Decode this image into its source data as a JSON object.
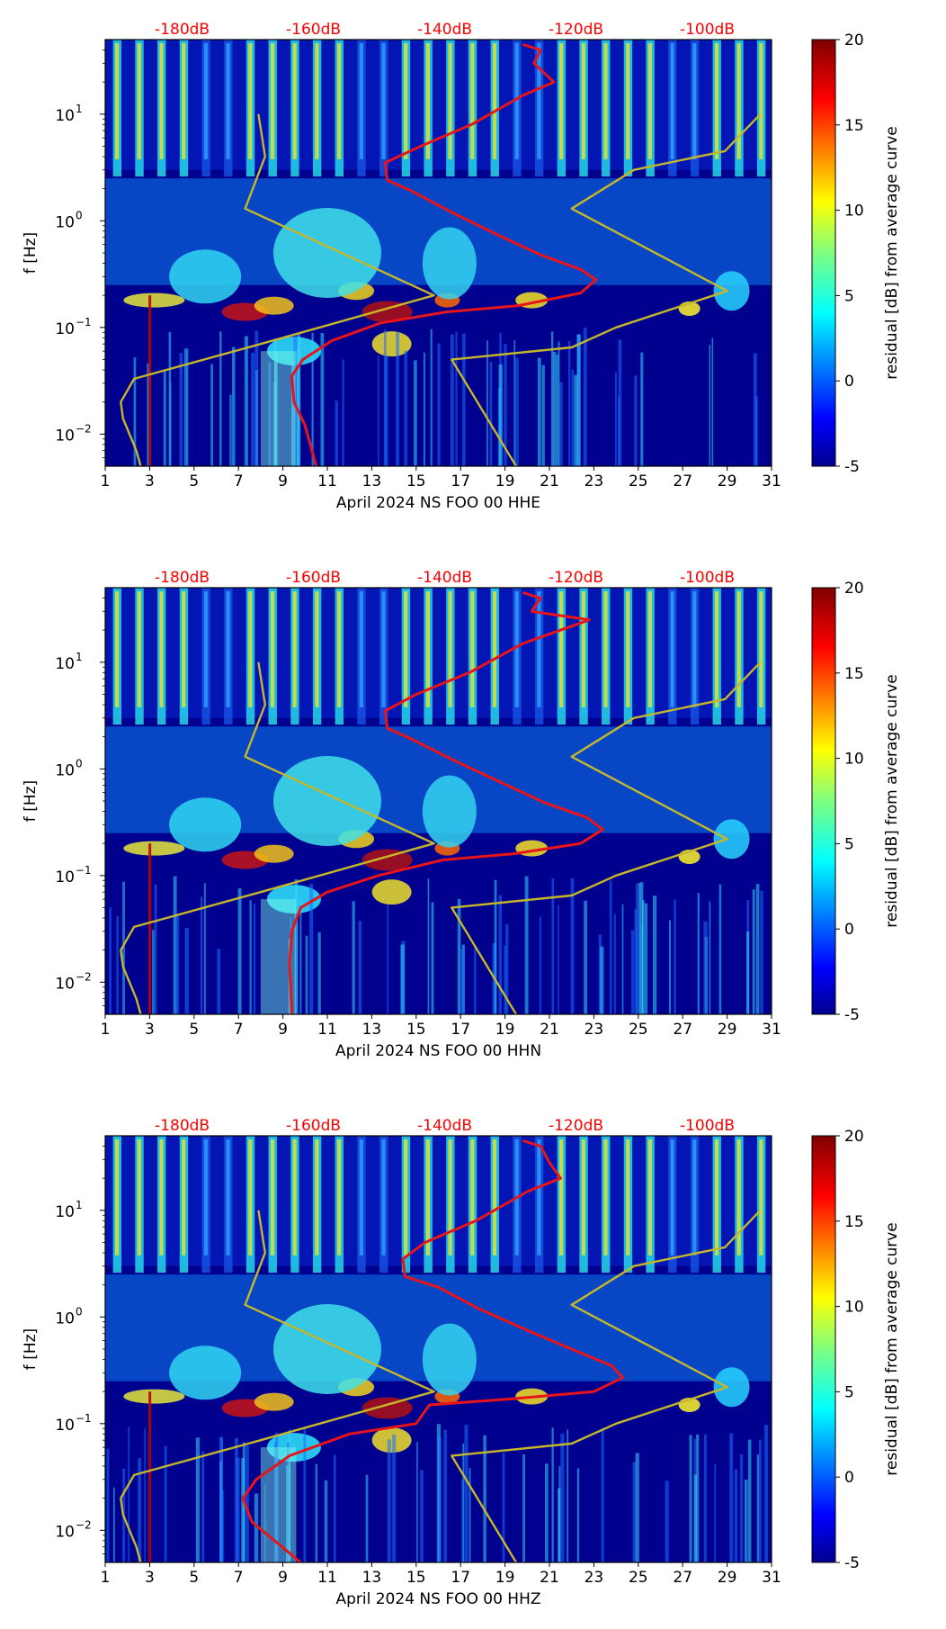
{
  "chart_data": [
    {
      "type": "heatmap",
      "title": "",
      "xlabel": "April 2024 NS FOO 00 HHE",
      "ylabel": "f [Hz]",
      "x_ticks": [
        1,
        3,
        5,
        7,
        9,
        11,
        13,
        15,
        17,
        19,
        21,
        23,
        25,
        27,
        29,
        31
      ],
      "xlim": [
        1,
        31
      ],
      "y_scale": "log",
      "ylim": [
        0.005,
        50
      ],
      "y_ticks": [
        {
          "value": 0.01,
          "base": "10",
          "exp": "−2"
        },
        {
          "value": 0.1,
          "base": "10",
          "exp": "−1"
        },
        {
          "value": 1,
          "base": "10",
          "exp": "0"
        },
        {
          "value": 10,
          "base": "10",
          "exp": "1"
        }
      ],
      "top_axis": {
        "labels": [
          "-180dB",
          "-160dB",
          "-140dB",
          "-120dB",
          "-100dB"
        ],
        "color": "#ff0000"
      },
      "colorbar": {
        "label": "residual [dB] from average curve",
        "ticks": [
          -5,
          0,
          5,
          10,
          15,
          20
        ],
        "min": -5,
        "max": 20,
        "colormap": "jet"
      },
      "series": [
        {
          "name": "average PSD curve",
          "color": "#e8141a",
          "points": [
            [
              19.8,
              45
            ],
            [
              20.6,
              40
            ],
            [
              20.3,
              30
            ],
            [
              21.2,
              20
            ],
            [
              19.8,
              15
            ],
            [
              17.5,
              8
            ],
            [
              15.2,
              5
            ],
            [
              13.6,
              3.5
            ],
            [
              13.7,
              2.4
            ],
            [
              14.8,
              1.9
            ],
            [
              16.6,
              1.2
            ],
            [
              18.6,
              0.75
            ],
            [
              20.6,
              0.48
            ],
            [
              22.4,
              0.35
            ],
            [
              23.1,
              0.28
            ],
            [
              22.4,
              0.21
            ],
            [
              19.6,
              0.16
            ],
            [
              16.4,
              0.14
            ],
            [
              13.4,
              0.11
            ],
            [
              11.2,
              0.075
            ],
            [
              9.9,
              0.05
            ],
            [
              9.4,
              0.035
            ],
            [
              9.5,
              0.02
            ],
            [
              10.0,
              0.012
            ],
            [
              10.5,
              0.005
            ]
          ]
        },
        {
          "name": "noise model",
          "color": "#c6b62a",
          "points": [
            [
              7.9,
              10
            ],
            [
              8.2,
              4
            ],
            [
              7.3,
              1.3
            ],
            [
              15.8,
              0.2
            ],
            [
              8.0,
              0.07
            ],
            [
              2.3,
              0.033
            ],
            [
              1.7,
              0.02
            ],
            [
              1.8,
              0.014
            ],
            [
              2.4,
              0.007
            ],
            [
              2.6,
              0.005
            ]
          ]
        },
        {
          "name": "noise model",
          "color": "#c6b62a",
          "points": [
            [
              30.5,
              10
            ],
            [
              28.9,
              4.5
            ],
            [
              24.8,
              3
            ],
            [
              22.0,
              1.3
            ],
            [
              29.0,
              0.22
            ],
            [
              24.0,
              0.1
            ],
            [
              22.0,
              0.065
            ],
            [
              16.6,
              0.05
            ],
            [
              19.5,
              0.005
            ]
          ]
        }
      ]
    },
    {
      "type": "heatmap",
      "title": "",
      "xlabel": "April 2024 NS FOO 00 HHN",
      "ylabel": "f [Hz]",
      "x_ticks": [
        1,
        3,
        5,
        7,
        9,
        11,
        13,
        15,
        17,
        19,
        21,
        23,
        25,
        27,
        29,
        31
      ],
      "xlim": [
        1,
        31
      ],
      "y_scale": "log",
      "ylim": [
        0.005,
        50
      ],
      "y_ticks": [
        {
          "value": 0.01,
          "base": "10",
          "exp": "−2"
        },
        {
          "value": 0.1,
          "base": "10",
          "exp": "−1"
        },
        {
          "value": 1,
          "base": "10",
          "exp": "0"
        },
        {
          "value": 10,
          "base": "10",
          "exp": "1"
        }
      ],
      "top_axis": {
        "labels": [
          "-180dB",
          "-160dB",
          "-140dB",
          "-120dB",
          "-100dB"
        ],
        "color": "#ff0000"
      },
      "colorbar": {
        "label": "residual [dB] from average curve",
        "ticks": [
          -5,
          0,
          5,
          10,
          15,
          20
        ],
        "min": -5,
        "max": 20,
        "colormap": "jet"
      },
      "series": [
        {
          "name": "average PSD curve",
          "color": "#e8141a",
          "points": [
            [
              19.8,
              45
            ],
            [
              20.6,
              40
            ],
            [
              20.2,
              30
            ],
            [
              22.8,
              25
            ],
            [
              19.8,
              15
            ],
            [
              17.4,
              8
            ],
            [
              15.0,
              5
            ],
            [
              13.6,
              3.5
            ],
            [
              13.7,
              2.4
            ],
            [
              14.8,
              1.9
            ],
            [
              16.7,
              1.2
            ],
            [
              18.8,
              0.75
            ],
            [
              20.8,
              0.48
            ],
            [
              22.7,
              0.35
            ],
            [
              23.4,
              0.27
            ],
            [
              22.4,
              0.2
            ],
            [
              19.4,
              0.16
            ],
            [
              16.2,
              0.14
            ],
            [
              13.3,
              0.1
            ],
            [
              11.0,
              0.07
            ],
            [
              9.8,
              0.05
            ],
            [
              9.4,
              0.03
            ],
            [
              9.3,
              0.015
            ],
            [
              9.4,
              0.005
            ]
          ]
        },
        {
          "name": "noise model",
          "color": "#c6b62a",
          "points": [
            [
              7.9,
              10
            ],
            [
              8.2,
              4
            ],
            [
              7.3,
              1.3
            ],
            [
              15.8,
              0.2
            ],
            [
              8.0,
              0.07
            ],
            [
              2.3,
              0.033
            ],
            [
              1.7,
              0.02
            ],
            [
              1.8,
              0.014
            ],
            [
              2.4,
              0.007
            ],
            [
              2.6,
              0.005
            ]
          ]
        },
        {
          "name": "noise model",
          "color": "#c6b62a",
          "points": [
            [
              30.5,
              10
            ],
            [
              28.9,
              4.5
            ],
            [
              24.8,
              3
            ],
            [
              22.0,
              1.3
            ],
            [
              29.0,
              0.22
            ],
            [
              24.0,
              0.1
            ],
            [
              22.0,
              0.065
            ],
            [
              16.6,
              0.05
            ],
            [
              19.5,
              0.005
            ]
          ]
        }
      ]
    },
    {
      "type": "heatmap",
      "title": "",
      "xlabel": "April 2024 NS FOO 00 HHZ",
      "ylabel": "f [Hz]",
      "x_ticks": [
        1,
        3,
        5,
        7,
        9,
        11,
        13,
        15,
        17,
        19,
        21,
        23,
        25,
        27,
        29,
        31
      ],
      "xlim": [
        1,
        31
      ],
      "y_scale": "log",
      "ylim": [
        0.005,
        50
      ],
      "y_ticks": [
        {
          "value": 0.01,
          "base": "10",
          "exp": "−2"
        },
        {
          "value": 0.1,
          "base": "10",
          "exp": "−1"
        },
        {
          "value": 1,
          "base": "10",
          "exp": "0"
        },
        {
          "value": 10,
          "base": "10",
          "exp": "1"
        }
      ],
      "top_axis": {
        "labels": [
          "-180dB",
          "-160dB",
          "-140dB",
          "-120dB",
          "-100dB"
        ],
        "color": "#ff0000"
      },
      "colorbar": {
        "label": "residual [dB] from average curve",
        "ticks": [
          -5,
          0,
          5,
          10,
          15,
          20
        ],
        "min": -5,
        "max": 20,
        "colormap": "jet"
      },
      "series": [
        {
          "name": "average PSD curve",
          "color": "#e8141a",
          "points": [
            [
              19.8,
              45
            ],
            [
              20.6,
              40
            ],
            [
              21.0,
              28
            ],
            [
              21.5,
              20
            ],
            [
              20.0,
              15
            ],
            [
              17.7,
              8
            ],
            [
              15.4,
              5
            ],
            [
              14.4,
              3.5
            ],
            [
              14.5,
              2.4
            ],
            [
              16.0,
              1.9
            ],
            [
              17.8,
              1.2
            ],
            [
              20.0,
              0.75
            ],
            [
              22.2,
              0.48
            ],
            [
              23.8,
              0.35
            ],
            [
              24.3,
              0.27
            ],
            [
              23.0,
              0.2
            ],
            [
              19.2,
              0.17
            ],
            [
              15.6,
              0.15
            ],
            [
              15.0,
              0.1
            ],
            [
              12.0,
              0.08
            ],
            [
              9.3,
              0.05
            ],
            [
              7.8,
              0.03
            ],
            [
              7.2,
              0.02
            ],
            [
              7.6,
              0.012
            ],
            [
              9.8,
              0.005
            ]
          ]
        },
        {
          "name": "noise model",
          "color": "#c6b62a",
          "points": [
            [
              7.9,
              10
            ],
            [
              8.2,
              4
            ],
            [
              7.3,
              1.3
            ],
            [
              15.8,
              0.2
            ],
            [
              8.0,
              0.07
            ],
            [
              2.3,
              0.033
            ],
            [
              1.7,
              0.02
            ],
            [
              1.8,
              0.014
            ],
            [
              2.4,
              0.007
            ],
            [
              2.6,
              0.005
            ]
          ]
        },
        {
          "name": "noise model",
          "color": "#c6b62a",
          "points": [
            [
              30.5,
              10
            ],
            [
              28.9,
              4.5
            ],
            [
              24.8,
              3
            ],
            [
              22.0,
              1.3
            ],
            [
              29.0,
              0.22
            ],
            [
              24.0,
              0.1
            ],
            [
              22.0,
              0.065
            ],
            [
              16.6,
              0.05
            ],
            [
              19.5,
              0.005
            ]
          ]
        }
      ]
    }
  ],
  "colors": {
    "text": "#000000",
    "top_axis": "#ff0000",
    "red_curve": "#e8141a",
    "yellow_curve": "#c6b62a",
    "background_blue": "#00008f"
  }
}
